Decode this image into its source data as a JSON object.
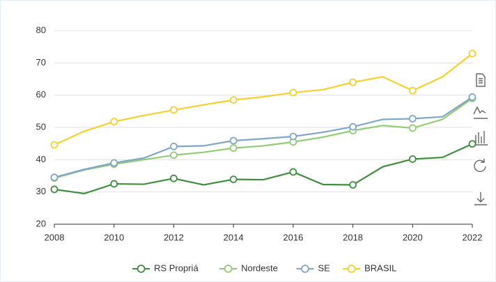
{
  "chart_data": {
    "type": "line",
    "x": [
      2008,
      2009,
      2010,
      2011,
      2012,
      2013,
      2014,
      2015,
      2016,
      2017,
      2018,
      2019,
      2020,
      2021,
      2022
    ],
    "xlim": [
      2008,
      2022
    ],
    "xticks": [
      2008,
      2010,
      2012,
      2014,
      2016,
      2018,
      2020,
      2022
    ],
    "ylim": [
      20,
      80
    ],
    "yticks": [
      20,
      30,
      40,
      50,
      60,
      70,
      80
    ],
    "grid": true,
    "legend": "bottom",
    "series": [
      {
        "name": "RS Propriá",
        "color": "#3e8e3e",
        "values": [
          30.8,
          29.5,
          32.5,
          32.4,
          34.2,
          32.2,
          33.9,
          33.8,
          36.2,
          32.3,
          32.2,
          37.8,
          40.2,
          40.7,
          44.9
        ]
      },
      {
        "name": "Nordeste",
        "color": "#91cc75",
        "values": [
          34.3,
          36.8,
          38.6,
          40.0,
          41.4,
          42.3,
          43.6,
          44.3,
          45.5,
          47.0,
          49.0,
          50.6,
          49.8,
          52.5,
          59.0
        ]
      },
      {
        "name": "SE",
        "color": "#7fa6c8",
        "values": [
          34.5,
          37.0,
          39.0,
          40.5,
          44.1,
          44.3,
          45.9,
          46.5,
          47.2,
          48.5,
          50.2,
          52.5,
          52.7,
          53.3,
          59.4
        ]
      },
      {
        "name": "BRASIL",
        "color": "#f7d12a",
        "values": [
          44.6,
          48.8,
          51.8,
          53.7,
          55.4,
          57.0,
          58.5,
          59.5,
          60.8,
          61.7,
          64.0,
          65.7,
          61.4,
          65.7,
          72.9
        ]
      }
    ]
  }
}
